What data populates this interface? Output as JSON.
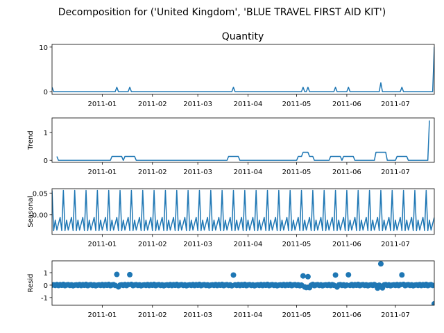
{
  "chart_data": {
    "type": "line",
    "suptitle": "Decomposition for ('United Kingdom', 'BLUE TRAVEL FIRST AID KIT')",
    "x_tick_labels": [
      "2011-01",
      "2011-02",
      "2011-03",
      "2011-04",
      "2011-05",
      "2011-06",
      "2011-07"
    ],
    "x_tick_dates": [
      "2011-01-01",
      "2011-02-01",
      "2011-03-01",
      "2011-04-01",
      "2011-05-01",
      "2011-06-01",
      "2011-07-01"
    ],
    "x_range": [
      "2010-12-01",
      "2011-07-25"
    ],
    "line_color": "#1f77b4",
    "panels": [
      {
        "key": "observed",
        "title": "Quantity",
        "ylabel": "",
        "ylim": [
          -0.6,
          10.6
        ],
        "yticks": [
          0,
          10
        ],
        "kind": "line",
        "points": [
          [
            "2010-12-01",
            1
          ],
          [
            "2010-12-02",
            0
          ],
          [
            "2011-01-09",
            0
          ],
          [
            "2011-01-10",
            1
          ],
          [
            "2011-01-11",
            0
          ],
          [
            "2011-01-17",
            0
          ],
          [
            "2011-01-18",
            1
          ],
          [
            "2011-01-19",
            0
          ],
          [
            "2011-03-22",
            0
          ],
          [
            "2011-03-23",
            1
          ],
          [
            "2011-03-24",
            0
          ],
          [
            "2011-05-04",
            0
          ],
          [
            "2011-05-05",
            1
          ],
          [
            "2011-05-06",
            0
          ],
          [
            "2011-05-07",
            0
          ],
          [
            "2011-05-08",
            1
          ],
          [
            "2011-05-09",
            0
          ],
          [
            "2011-05-24",
            0
          ],
          [
            "2011-05-25",
            1
          ],
          [
            "2011-05-26",
            0
          ],
          [
            "2011-06-01",
            0
          ],
          [
            "2011-06-02",
            1
          ],
          [
            "2011-06-03",
            0
          ],
          [
            "2011-06-21",
            0
          ],
          [
            "2011-06-22",
            2
          ],
          [
            "2011-06-23",
            0
          ],
          [
            "2011-07-04",
            0
          ],
          [
            "2011-07-05",
            1
          ],
          [
            "2011-07-06",
            0
          ],
          [
            "2011-07-24",
            0
          ],
          [
            "2011-07-25",
            10
          ]
        ]
      },
      {
        "key": "trend",
        "title": "",
        "ylabel": "Trend",
        "ylim": [
          -0.07,
          1.52
        ],
        "yticks": [
          0,
          1
        ],
        "kind": "line",
        "points": [
          [
            "2010-12-04",
            0.14
          ],
          [
            "2010-12-05",
            0
          ],
          [
            "2011-01-06",
            0
          ],
          [
            "2011-01-07",
            0.14
          ],
          [
            "2011-01-13",
            0.14
          ],
          [
            "2011-01-14",
            0
          ],
          [
            "2011-01-15",
            0.14
          ],
          [
            "2011-01-21",
            0.14
          ],
          [
            "2011-01-22",
            0
          ],
          [
            "2011-03-19",
            0
          ],
          [
            "2011-03-20",
            0.14
          ],
          [
            "2011-03-26",
            0.14
          ],
          [
            "2011-03-27",
            0
          ],
          [
            "2011-05-01",
            0
          ],
          [
            "2011-05-02",
            0.14
          ],
          [
            "2011-05-04",
            0.14
          ],
          [
            "2011-05-05",
            0.29
          ],
          [
            "2011-05-08",
            0.29
          ],
          [
            "2011-05-09",
            0.14
          ],
          [
            "2011-05-11",
            0.14
          ],
          [
            "2011-05-12",
            0
          ],
          [
            "2011-05-21",
            0
          ],
          [
            "2011-05-22",
            0.14
          ],
          [
            "2011-05-28",
            0.14
          ],
          [
            "2011-05-29",
            0
          ],
          [
            "2011-05-30",
            0.14
          ],
          [
            "2011-06-05",
            0.14
          ],
          [
            "2011-06-06",
            0
          ],
          [
            "2011-06-18",
            0
          ],
          [
            "2011-06-19",
            0.29
          ],
          [
            "2011-06-25",
            0.29
          ],
          [
            "2011-06-26",
            0
          ],
          [
            "2011-07-01",
            0
          ],
          [
            "2011-07-02",
            0.14
          ],
          [
            "2011-07-08",
            0.14
          ],
          [
            "2011-07-09",
            0
          ],
          [
            "2011-07-21",
            0
          ],
          [
            "2011-07-22",
            1.43
          ]
        ]
      },
      {
        "key": "seasonal",
        "title": "",
        "ylabel": "Seasonal",
        "ylim": [
          -0.045,
          0.06
        ],
        "yticks": [
          0.05,
          0.0
        ],
        "ytick_labels": [
          "0.05",
          "0.00"
        ],
        "kind": "periodic",
        "period_days": 7,
        "cycle_start": "2010-12-01",
        "cycle_values": [
          0.056,
          -0.036,
          -0.012,
          -0.035,
          -0.02,
          -0.006,
          -0.036
        ]
      },
      {
        "key": "resid",
        "title": "",
        "ylabel": "Resid",
        "ylim": [
          -1.62,
          1.95
        ],
        "yticks": [
          1,
          0,
          -1
        ],
        "kind": "scatter",
        "baseline": 0,
        "cycle_start": "2010-12-01",
        "cycle_values": [
          0.0,
          0.02,
          -0.02,
          0.04,
          -0.03,
          0.03,
          -0.01,
          0.05,
          -0.04,
          0.01,
          0.03,
          -0.02,
          0.02,
          -0.05
        ],
        "outliers": [
          [
            "2011-01-10",
            0.86
          ],
          [
            "2011-01-11",
            -0.14
          ],
          [
            "2011-01-18",
            0.84
          ],
          [
            "2011-03-23",
            0.81
          ],
          [
            "2011-05-05",
            0.74
          ],
          [
            "2011-05-06",
            -0.15
          ],
          [
            "2011-05-07",
            -0.19
          ],
          [
            "2011-05-08",
            0.68
          ],
          [
            "2011-05-09",
            -0.2
          ],
          [
            "2011-05-25",
            0.81
          ],
          [
            "2011-05-26",
            -0.15
          ],
          [
            "2011-06-02",
            0.83
          ],
          [
            "2011-06-20",
            -0.24
          ],
          [
            "2011-06-22",
            1.71
          ],
          [
            "2011-06-23",
            -0.22
          ],
          [
            "2011-07-05",
            0.82
          ],
          [
            "2011-07-25",
            -1.5
          ]
        ]
      }
    ]
  }
}
